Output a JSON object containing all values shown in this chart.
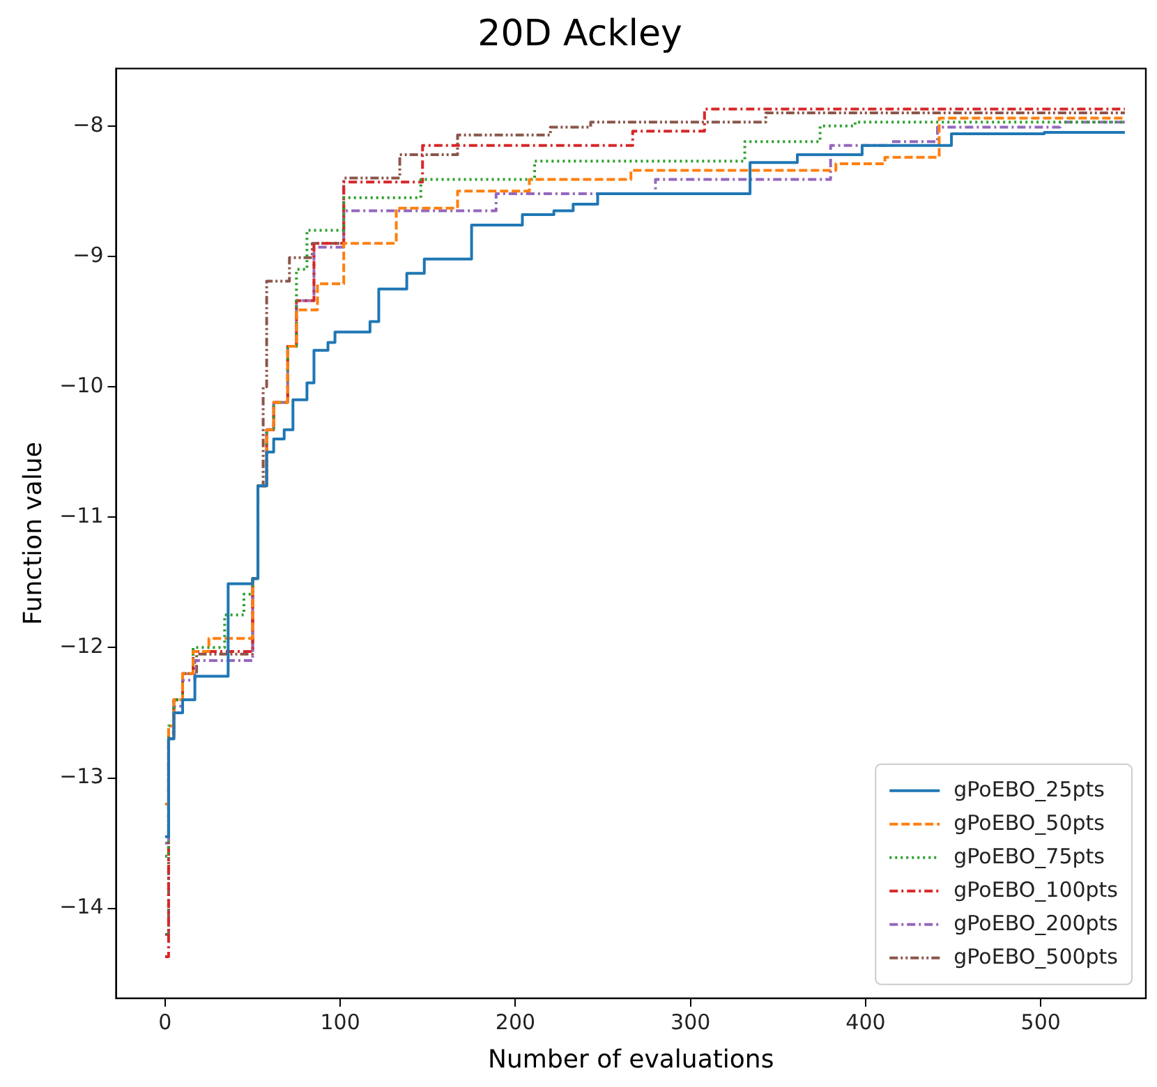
{
  "chart_data": {
    "type": "step",
    "title": "20D Ackley",
    "xlabel": "Number of evaluations",
    "ylabel": "Function value",
    "xlim": [
      -28,
      560
    ],
    "ylim": [
      -14.69,
      -7.56
    ],
    "xticks": [
      0,
      100,
      200,
      300,
      400,
      500
    ],
    "yticks": [
      {
        "value": -14,
        "label": "−14"
      },
      {
        "value": -13,
        "label": "−13"
      },
      {
        "value": -12,
        "label": "−12"
      },
      {
        "value": -11,
        "label": "−11"
      },
      {
        "value": -10,
        "label": "−10"
      },
      {
        "value": -9,
        "label": "−9"
      },
      {
        "value": -8,
        "label": "−8"
      }
    ],
    "grid": false,
    "legend": "bottom right",
    "marker": "none",
    "series": [
      {
        "name": "gPoEBO_25pts",
        "color": "#1f77b4",
        "line_style": "solid",
        "x": [
          0,
          2,
          5,
          10,
          17,
          36,
          50,
          53,
          58,
          62,
          68,
          73,
          81,
          85,
          93,
          97,
          117,
          122,
          138,
          148,
          175,
          204,
          222,
          233,
          247,
          334,
          361,
          398,
          449,
          502,
          548
        ],
        "values": [
          -13.45,
          -12.7,
          -12.5,
          -12.4,
          -12.22,
          -11.51,
          -11.47,
          -10.76,
          -10.5,
          -10.4,
          -10.33,
          -10.1,
          -9.97,
          -9.72,
          -9.66,
          -9.58,
          -9.5,
          -9.25,
          -9.13,
          -9.02,
          -8.76,
          -8.68,
          -8.65,
          -8.6,
          -8.52,
          -8.28,
          -8.22,
          -8.15,
          -8.06,
          -8.05,
          -8.05
        ]
      },
      {
        "name": "gPoEBO_50pts",
        "color": "#ff7f0e",
        "line_style": "dashed",
        "x": [
          0,
          2,
          5,
          10,
          16,
          25,
          50,
          53,
          58,
          62,
          70,
          75,
          87,
          102,
          132,
          167,
          208,
          266,
          383,
          411,
          442,
          548
        ],
        "values": [
          -13.2,
          -12.6,
          -12.4,
          -12.2,
          -12.03,
          -11.93,
          -11.47,
          -10.76,
          -10.33,
          -10.12,
          -9.69,
          -9.41,
          -9.21,
          -8.9,
          -8.63,
          -8.5,
          -8.41,
          -8.34,
          -8.29,
          -8.24,
          -7.94,
          -7.94
        ]
      },
      {
        "name": "gPoEBO_75pts",
        "color": "#2ca02c",
        "line_style": "dotted",
        "x": [
          0,
          2,
          5,
          10,
          16,
          34,
          45,
          50,
          53,
          58,
          62,
          70,
          75,
          81,
          102,
          146,
          211,
          331,
          374,
          394,
          548
        ],
        "values": [
          -13.6,
          -12.6,
          -12.4,
          -12.2,
          -12.0,
          -11.75,
          -11.59,
          -11.47,
          -10.76,
          -10.33,
          -10.12,
          -9.69,
          -9.1,
          -8.8,
          -8.55,
          -8.41,
          -8.27,
          -8.12,
          -8.0,
          -7.97,
          -7.97
        ]
      },
      {
        "name": "gPoEBO_100pts",
        "color": "#d62728",
        "line_style": "dashdot",
        "x": [
          0,
          2,
          5,
          10,
          16,
          50,
          53,
          58,
          62,
          70,
          75,
          85,
          102,
          147,
          267,
          308,
          548
        ],
        "values": [
          -14.37,
          -12.7,
          -12.4,
          -12.2,
          -12.03,
          -11.47,
          -10.76,
          -10.33,
          -10.12,
          -9.69,
          -9.34,
          -8.9,
          -8.43,
          -8.15,
          -8.04,
          -7.87,
          -7.87
        ]
      },
      {
        "name": "gPoEBO_200pts",
        "color": "#9467bd",
        "line_style": "dashdot",
        "x": [
          0,
          2,
          5,
          10,
          17,
          50,
          53,
          58,
          62,
          70,
          75,
          85,
          102,
          189,
          280,
          380,
          415,
          441,
          511,
          548
        ],
        "values": [
          -13.5,
          -12.7,
          -12.45,
          -12.25,
          -12.1,
          -11.47,
          -10.76,
          -10.33,
          -10.12,
          -9.69,
          -9.34,
          -8.93,
          -8.65,
          -8.52,
          -8.41,
          -8.15,
          -8.12,
          -8.01,
          -7.97,
          -7.97
        ]
      },
      {
        "name": "gPoEBO_500pts",
        "color": "#8c564b",
        "line_style": "dashdotdot",
        "x": [
          0,
          2,
          5,
          10,
          18,
          50,
          53,
          56,
          58,
          71,
          84,
          102,
          134,
          167,
          220,
          243,
          343,
          548
        ],
        "values": [
          -14.2,
          -12.65,
          -12.4,
          -12.2,
          -12.05,
          -11.47,
          -10.76,
          -10.0,
          -9.19,
          -9.01,
          -8.9,
          -8.4,
          -8.22,
          -8.07,
          -8.01,
          -7.97,
          -7.9,
          -7.9
        ]
      }
    ]
  }
}
